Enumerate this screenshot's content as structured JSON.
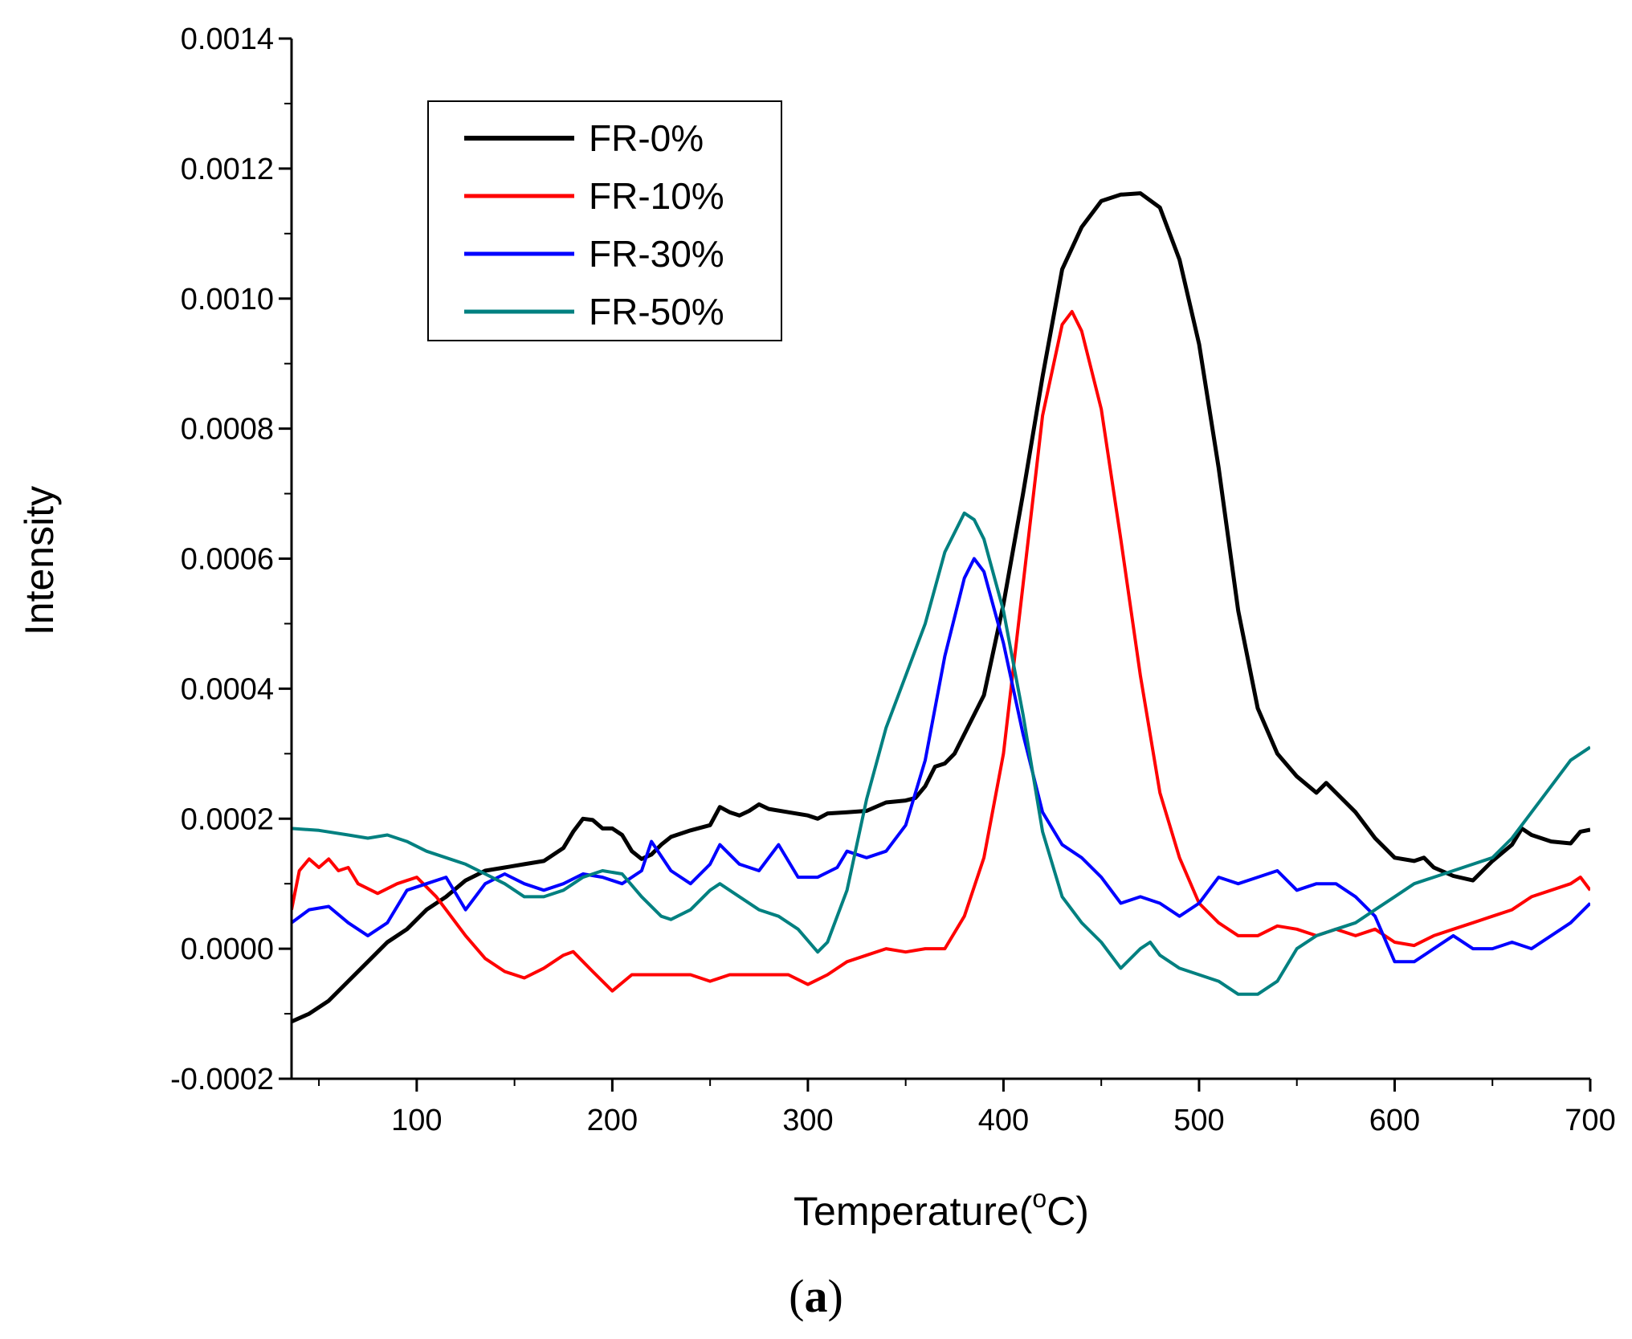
{
  "chart_data": {
    "type": "line",
    "title": "",
    "panel_label_open": "(",
    "panel_label": "a",
    "panel_label_close": ")",
    "xlabel": "Temperature(",
    "xlabel_degree": "o",
    "xlabel_unit": "C)",
    "ylabel": "Intensity",
    "xlim": [
      36,
      700
    ],
    "ylim": [
      -0.0002,
      0.0014
    ],
    "x_ticks": [
      100,
      200,
      300,
      400,
      500,
      600,
      700
    ],
    "x_tick_labels": [
      "100",
      "200",
      "300",
      "400",
      "500",
      "600",
      "700"
    ],
    "y_ticks": [
      -0.0002,
      0.0,
      0.0002,
      0.0004,
      0.0006,
      0.0008,
      0.001,
      0.0012,
      0.0014
    ],
    "y_tick_labels": [
      "-0.0002",
      "0.0000",
      "0.0002",
      "0.0004",
      "0.0006",
      "0.0008",
      "0.0010",
      "0.0012",
      "0.0014"
    ],
    "grid": false,
    "legend_position": "top-left",
    "series": [
      {
        "name": "FR-0%",
        "color": "#000000",
        "points": [
          [
            36,
            -0.000112
          ],
          [
            45,
            -0.0001
          ],
          [
            55,
            -8e-05
          ],
          [
            65,
            -5e-05
          ],
          [
            75,
            -2e-05
          ],
          [
            85,
            1e-05
          ],
          [
            95,
            3e-05
          ],
          [
            105,
            6e-05
          ],
          [
            115,
            8e-05
          ],
          [
            125,
            0.000105
          ],
          [
            135,
            0.00012
          ],
          [
            145,
            0.000125
          ],
          [
            155,
            0.00013
          ],
          [
            165,
            0.000135
          ],
          [
            175,
            0.000155
          ],
          [
            180,
            0.00018
          ],
          [
            185,
            0.0002
          ],
          [
            190,
            0.000198
          ],
          [
            195,
            0.000185
          ],
          [
            200,
            0.000185
          ],
          [
            205,
            0.000175
          ],
          [
            210,
            0.00015
          ],
          [
            215,
            0.000138
          ],
          [
            220,
            0.000145
          ],
          [
            225,
            0.00016
          ],
          [
            230,
            0.000172
          ],
          [
            240,
            0.000182
          ],
          [
            250,
            0.00019
          ],
          [
            255,
            0.000218
          ],
          [
            260,
            0.00021
          ],
          [
            265,
            0.000205
          ],
          [
            270,
            0.000212
          ],
          [
            275,
            0.000222
          ],
          [
            280,
            0.000215
          ],
          [
            290,
            0.00021
          ],
          [
            300,
            0.000205
          ],
          [
            305,
            0.0002
          ],
          [
            310,
            0.000208
          ],
          [
            320,
            0.00021
          ],
          [
            330,
            0.000212
          ],
          [
            340,
            0.000225
          ],
          [
            350,
            0.000228
          ],
          [
            355,
            0.000232
          ],
          [
            360,
            0.00025
          ],
          [
            365,
            0.00028
          ],
          [
            370,
            0.000285
          ],
          [
            375,
            0.0003
          ],
          [
            380,
            0.00033
          ],
          [
            390,
            0.00039
          ],
          [
            400,
            0.00053
          ],
          [
            410,
            0.0007
          ],
          [
            420,
            0.00088
          ],
          [
            430,
            0.001045
          ],
          [
            440,
            0.00111
          ],
          [
            450,
            0.00115
          ],
          [
            460,
            0.00116
          ],
          [
            470,
            0.001162
          ],
          [
            480,
            0.00114
          ],
          [
            490,
            0.00106
          ],
          [
            500,
            0.00093
          ],
          [
            510,
            0.00074
          ],
          [
            520,
            0.00052
          ],
          [
            530,
            0.00037
          ],
          [
            540,
            0.0003
          ],
          [
            550,
            0.000265
          ],
          [
            560,
            0.00024
          ],
          [
            565,
            0.000255
          ],
          [
            570,
            0.00024
          ],
          [
            580,
            0.00021
          ],
          [
            590,
            0.00017
          ],
          [
            600,
            0.00014
          ],
          [
            610,
            0.000135
          ],
          [
            615,
            0.00014
          ],
          [
            620,
            0.000125
          ],
          [
            630,
            0.000112
          ],
          [
            640,
            0.000105
          ],
          [
            650,
            0.000135
          ],
          [
            660,
            0.00016
          ],
          [
            665,
            0.000185
          ],
          [
            670,
            0.000175
          ],
          [
            680,
            0.000165
          ],
          [
            690,
            0.000162
          ],
          [
            695,
            0.00018
          ],
          [
            700,
            0.000183
          ]
        ]
      },
      {
        "name": "FR-10%",
        "color": "#ff0000",
        "points": [
          [
            36,
            6e-05
          ],
          [
            40,
            0.00012
          ],
          [
            45,
            0.000138
          ],
          [
            50,
            0.000125
          ],
          [
            55,
            0.000138
          ],
          [
            60,
            0.00012
          ],
          [
            65,
            0.000125
          ],
          [
            70,
            0.0001
          ],
          [
            80,
            8.5e-05
          ],
          [
            90,
            0.0001
          ],
          [
            100,
            0.00011
          ],
          [
            110,
            8e-05
          ],
          [
            115,
            6e-05
          ],
          [
            125,
            2e-05
          ],
          [
            135,
            -1.5e-05
          ],
          [
            145,
            -3.5e-05
          ],
          [
            155,
            -4.5e-05
          ],
          [
            165,
            -3e-05
          ],
          [
            175,
            -1e-05
          ],
          [
            180,
            -4.5e-06
          ],
          [
            190,
            -3.5e-05
          ],
          [
            200,
            -6.5e-05
          ],
          [
            210,
            -4e-05
          ],
          [
            220,
            -4e-05
          ],
          [
            230,
            -4e-05
          ],
          [
            240,
            -4e-05
          ],
          [
            250,
            -5e-05
          ],
          [
            260,
            -4e-05
          ],
          [
            270,
            -4e-05
          ],
          [
            280,
            -4e-05
          ],
          [
            290,
            -4e-05
          ],
          [
            300,
            -5.5e-05
          ],
          [
            310,
            -4e-05
          ],
          [
            320,
            -2e-05
          ],
          [
            330,
            -1e-05
          ],
          [
            340,
            0.0
          ],
          [
            350,
            -5e-06
          ],
          [
            360,
            0.0
          ],
          [
            370,
            0.0
          ],
          [
            380,
            5e-05
          ],
          [
            390,
            0.00014
          ],
          [
            400,
            0.0003
          ],
          [
            410,
            0.00056
          ],
          [
            420,
            0.00082
          ],
          [
            430,
            0.00096
          ],
          [
            435,
            0.00098
          ],
          [
            440,
            0.00095
          ],
          [
            450,
            0.00083
          ],
          [
            460,
            0.00063
          ],
          [
            470,
            0.00042
          ],
          [
            480,
            0.00024
          ],
          [
            490,
            0.00014
          ],
          [
            500,
            7e-05
          ],
          [
            510,
            4e-05
          ],
          [
            520,
            2e-05
          ],
          [
            530,
            2e-05
          ],
          [
            540,
            3.5e-05
          ],
          [
            550,
            3e-05
          ],
          [
            560,
            2e-05
          ],
          [
            570,
            3e-05
          ],
          [
            580,
            2e-05
          ],
          [
            590,
            3e-05
          ],
          [
            600,
            1e-05
          ],
          [
            610,
            5e-06
          ],
          [
            620,
            2e-05
          ],
          [
            630,
            3e-05
          ],
          [
            640,
            4e-05
          ],
          [
            650,
            5e-05
          ],
          [
            660,
            6e-05
          ],
          [
            670,
            8e-05
          ],
          [
            680,
            9e-05
          ],
          [
            690,
            0.0001
          ],
          [
            695,
            0.00011
          ],
          [
            700,
            9e-05
          ]
        ]
      },
      {
        "name": "FR-30%",
        "color": "#0000ff",
        "points": [
          [
            36,
            4e-05
          ],
          [
            45,
            6e-05
          ],
          [
            55,
            6.5e-05
          ],
          [
            65,
            4e-05
          ],
          [
            75,
            2e-05
          ],
          [
            85,
            4e-05
          ],
          [
            95,
            9e-05
          ],
          [
            105,
            0.0001
          ],
          [
            115,
            0.00011
          ],
          [
            125,
            6e-05
          ],
          [
            135,
            0.0001
          ],
          [
            145,
            0.000115
          ],
          [
            155,
            0.0001
          ],
          [
            165,
            9e-05
          ],
          [
            175,
            0.0001
          ],
          [
            185,
            0.000115
          ],
          [
            195,
            0.00011
          ],
          [
            205,
            0.0001
          ],
          [
            215,
            0.00012
          ],
          [
            220,
            0.000165
          ],
          [
            230,
            0.00012
          ],
          [
            240,
            0.0001
          ],
          [
            250,
            0.00013
          ],
          [
            255,
            0.00016
          ],
          [
            265,
            0.00013
          ],
          [
            275,
            0.00012
          ],
          [
            285,
            0.00016
          ],
          [
            295,
            0.00011
          ],
          [
            305,
            0.00011
          ],
          [
            315,
            0.000125
          ],
          [
            320,
            0.00015
          ],
          [
            330,
            0.00014
          ],
          [
            340,
            0.00015
          ],
          [
            350,
            0.00019
          ],
          [
            360,
            0.00029
          ],
          [
            370,
            0.00045
          ],
          [
            380,
            0.00057
          ],
          [
            385,
            0.0006
          ],
          [
            390,
            0.00058
          ],
          [
            400,
            0.00047
          ],
          [
            410,
            0.00033
          ],
          [
            420,
            0.00021
          ],
          [
            430,
            0.00016
          ],
          [
            440,
            0.00014
          ],
          [
            450,
            0.00011
          ],
          [
            460,
            7e-05
          ],
          [
            470,
            8e-05
          ],
          [
            480,
            7e-05
          ],
          [
            490,
            5e-05
          ],
          [
            500,
            7e-05
          ],
          [
            510,
            0.00011
          ],
          [
            520,
            0.0001
          ],
          [
            530,
            0.00011
          ],
          [
            540,
            0.00012
          ],
          [
            550,
            9e-05
          ],
          [
            560,
            0.0001
          ],
          [
            570,
            0.0001
          ],
          [
            580,
            8e-05
          ],
          [
            590,
            5e-05
          ],
          [
            600,
            -2e-05
          ],
          [
            610,
            -2e-05
          ],
          [
            620,
            0.0
          ],
          [
            630,
            2e-05
          ],
          [
            640,
            0.0
          ],
          [
            650,
            0.0
          ],
          [
            660,
            1e-05
          ],
          [
            670,
            0.0
          ],
          [
            680,
            2e-05
          ],
          [
            690,
            4e-05
          ],
          [
            700,
            7e-05
          ]
        ]
      },
      {
        "name": "FR-50%",
        "color": "#008080",
        "points": [
          [
            36,
            0.000185
          ],
          [
            50,
            0.000182
          ],
          [
            65,
            0.000175
          ],
          [
            75,
            0.00017
          ],
          [
            85,
            0.000175
          ],
          [
            95,
            0.000165
          ],
          [
            105,
            0.00015
          ],
          [
            115,
            0.00014
          ],
          [
            125,
            0.00013
          ],
          [
            135,
            0.000115
          ],
          [
            145,
            0.0001
          ],
          [
            155,
            8e-05
          ],
          [
            165,
            8e-05
          ],
          [
            175,
            9e-05
          ],
          [
            185,
            0.00011
          ],
          [
            195,
            0.00012
          ],
          [
            205,
            0.000115
          ],
          [
            215,
            8e-05
          ],
          [
            225,
            5e-05
          ],
          [
            230,
            4.5e-05
          ],
          [
            240,
            6e-05
          ],
          [
            250,
            9e-05
          ],
          [
            255,
            0.0001
          ],
          [
            265,
            8e-05
          ],
          [
            275,
            6e-05
          ],
          [
            285,
            5e-05
          ],
          [
            295,
            3e-05
          ],
          [
            305,
            -5e-06
          ],
          [
            310,
            1e-05
          ],
          [
            320,
            9e-05
          ],
          [
            330,
            0.00023
          ],
          [
            340,
            0.00034
          ],
          [
            350,
            0.00042
          ],
          [
            360,
            0.0005
          ],
          [
            370,
            0.00061
          ],
          [
            380,
            0.00067
          ],
          [
            385,
            0.00066
          ],
          [
            390,
            0.00063
          ],
          [
            400,
            0.00052
          ],
          [
            410,
            0.00036
          ],
          [
            420,
            0.00018
          ],
          [
            430,
            8e-05
          ],
          [
            440,
            4e-05
          ],
          [
            450,
            1e-05
          ],
          [
            460,
            -3e-05
          ],
          [
            470,
            0.0
          ],
          [
            475,
            1e-05
          ],
          [
            480,
            -1e-05
          ],
          [
            490,
            -3e-05
          ],
          [
            500,
            -4e-05
          ],
          [
            510,
            -5e-05
          ],
          [
            520,
            -7e-05
          ],
          [
            530,
            -7e-05
          ],
          [
            540,
            -5e-05
          ],
          [
            550,
            0.0
          ],
          [
            560,
            2e-05
          ],
          [
            570,
            3e-05
          ],
          [
            580,
            4e-05
          ],
          [
            590,
            6e-05
          ],
          [
            600,
            8e-05
          ],
          [
            610,
            0.0001
          ],
          [
            620,
            0.00011
          ],
          [
            630,
            0.00012
          ],
          [
            640,
            0.00013
          ],
          [
            650,
            0.00014
          ],
          [
            660,
            0.00017
          ],
          [
            670,
            0.00021
          ],
          [
            680,
            0.00025
          ],
          [
            690,
            0.00029
          ],
          [
            700,
            0.00031
          ]
        ]
      }
    ]
  }
}
